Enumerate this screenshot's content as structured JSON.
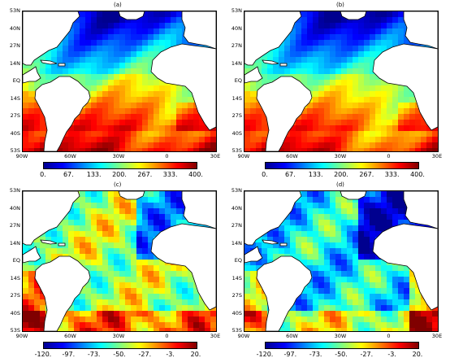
{
  "panels": [
    {
      "label": "(a)",
      "scale": "top"
    },
    {
      "label": "(b)",
      "scale": "top"
    },
    {
      "label": "(c)",
      "scale": "bottom"
    },
    {
      "label": "(d)",
      "scale": "bottom"
    }
  ],
  "lat_labels": [
    "53N",
    "40N",
    "27N",
    "14N",
    "EQ",
    "14S",
    "27S",
    "40S",
    "53S"
  ],
  "lon_labels": [
    "90W",
    "60W",
    "30W",
    "0",
    "30E"
  ],
  "colorbar_top": [
    "0.",
    "67.",
    "133.",
    "200.",
    "267.",
    "333.",
    "400."
  ],
  "colorbar_bottom": [
    "-120.",
    "-97.",
    "-73.",
    "-50.",
    "-27.",
    "-3.",
    "20."
  ],
  "colors": {
    "colormap": [
      "#00008f",
      "#0000ff",
      "#0080ff",
      "#00ffff",
      "#80ff80",
      "#ffff00",
      "#ff8000",
      "#ff0000",
      "#800000"
    ],
    "land": "#ffffff",
    "coast": "#000000"
  }
}
